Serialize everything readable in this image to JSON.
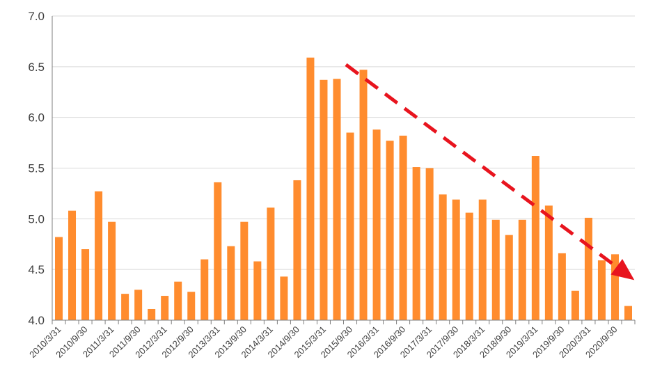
{
  "chart_data": {
    "type": "bar",
    "title": "",
    "xlabel": "",
    "ylabel": "",
    "ylim": [
      4.0,
      7.0
    ],
    "yticks": [
      "4.0",
      "4.5",
      "5.0",
      "5.5",
      "6.0",
      "6.5",
      "7.0"
    ],
    "grid": true,
    "bar_color": "#FF8C2E",
    "arrow_color": "#E8141E",
    "categories": [
      "2010/3/31",
      "2010/6/30",
      "2010/9/30",
      "2010/12/31",
      "2011/3/31",
      "2011/6/30",
      "2011/9/30",
      "2011/12/31",
      "2012/3/31",
      "2012/6/30",
      "2012/9/30",
      "2012/12/31",
      "2013/3/31",
      "2013/6/30",
      "2013/9/30",
      "2013/12/31",
      "2014/3/31",
      "2014/6/30",
      "2014/9/30",
      "2014/12/31",
      "2015/3/31",
      "2015/6/30",
      "2015/9/30",
      "2015/12/31",
      "2016/3/31",
      "2016/6/30",
      "2016/9/30",
      "2016/12/31",
      "2017/3/31",
      "2017/6/30",
      "2017/9/30",
      "2017/12/31",
      "2018/3/31",
      "2018/6/30",
      "2018/9/30",
      "2018/12/31",
      "2019/3/31",
      "2019/6/30",
      "2019/9/30",
      "2019/12/31",
      "2020/3/31",
      "2020/6/30",
      "2020/9/30",
      "2020/12/31"
    ],
    "shown_tick_labels": [
      "2010/3/31",
      "2010/9/30",
      "2011/3/31",
      "2011/9/30",
      "2012/3/31",
      "2012/9/30",
      "2013/3/31",
      "2013/9/30",
      "2014/3/31",
      "2014/9/30",
      "2015/3/31",
      "2015/9/30",
      "2016/3/31",
      "2016/9/30",
      "2017/3/31",
      "2017/9/30",
      "2018/3/31",
      "2018/9/30",
      "2019/3/31",
      "2019/9/30",
      "2020/3/31",
      "2020/9/30"
    ],
    "values": [
      4.82,
      5.08,
      4.7,
      5.27,
      4.97,
      4.26,
      4.3,
      4.11,
      4.24,
      4.38,
      4.28,
      4.6,
      5.36,
      4.73,
      4.97,
      4.58,
      5.11,
      4.43,
      5.38,
      6.59,
      6.37,
      6.38,
      5.85,
      6.47,
      5.88,
      5.77,
      5.82,
      5.51,
      5.5,
      5.24,
      5.19,
      5.06,
      5.19,
      4.99,
      4.84,
      4.99,
      5.62,
      5.13,
      4.66,
      4.29,
      5.01,
      4.59,
      4.65,
      4.14
    ],
    "trend_arrow": {
      "from": {
        "x": "2015/9/30",
        "y": 6.52
      },
      "to": {
        "x": "2020/12/31",
        "y": 4.42
      }
    }
  }
}
